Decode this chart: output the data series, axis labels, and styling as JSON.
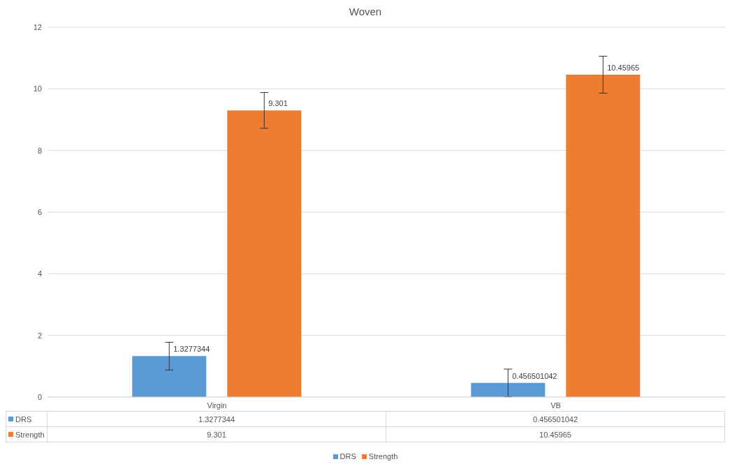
{
  "chart_data": {
    "type": "bar",
    "title": "Woven",
    "categories": [
      "Virgin",
      "VB"
    ],
    "series": [
      {
        "name": "DRS",
        "color": "#5b9bd5",
        "values": [
          1.3277344,
          0.456501042
        ],
        "value_labels": [
          "1.3277344",
          "0.456501042"
        ],
        "errors": [
          0.45,
          0.45
        ]
      },
      {
        "name": "Strength",
        "color": "#ed7d31",
        "values": [
          9.301,
          10.45965
        ],
        "value_labels": [
          "9.301",
          "10.45965"
        ],
        "errors": [
          0.58,
          0.6
        ]
      }
    ],
    "ylim": [
      0,
      12
    ],
    "yticks": [
      0,
      2,
      4,
      6,
      8,
      10,
      12
    ],
    "grid": "y",
    "legend": "bottom",
    "data_labels": true,
    "annotations": [
      "1.3277344",
      "0.456501042",
      "9.301",
      "10.45965"
    ]
  }
}
